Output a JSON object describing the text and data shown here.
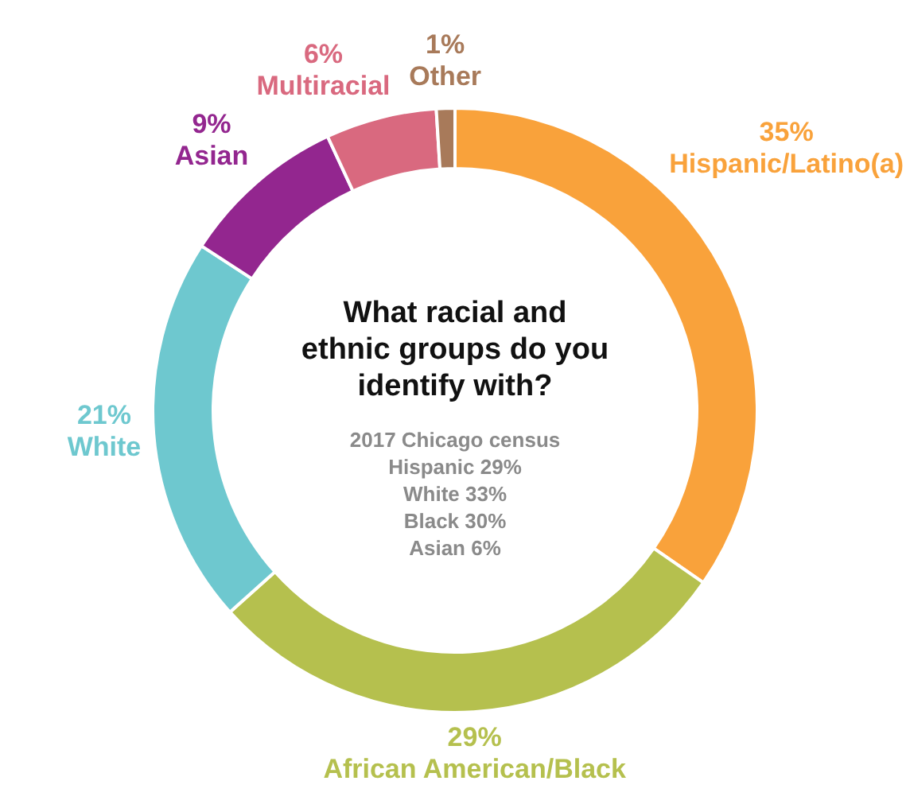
{
  "chart_data": {
    "type": "donut",
    "title": "What racial and ethnic groups do you identify with?",
    "categories": [
      "Hispanic/Latino(a)",
      "African American/Black",
      "White",
      "Asian",
      "Multiracial",
      "Other"
    ],
    "values": [
      35,
      29,
      21,
      9,
      6,
      1
    ],
    "colors": [
      "#f9a23b",
      "#b5c04e",
      "#6ec8cf",
      "#93268f",
      "#d9697f",
      "#a87a5a"
    ],
    "annotations": [
      "2017 Chicago census",
      "Hispanic 29%",
      "White 33%",
      "Black 30%",
      "Asian 6%"
    ],
    "value_labels": [
      "35%",
      "29%",
      "21%",
      "9%",
      "6%",
      "1%"
    ],
    "legend": false
  }
}
